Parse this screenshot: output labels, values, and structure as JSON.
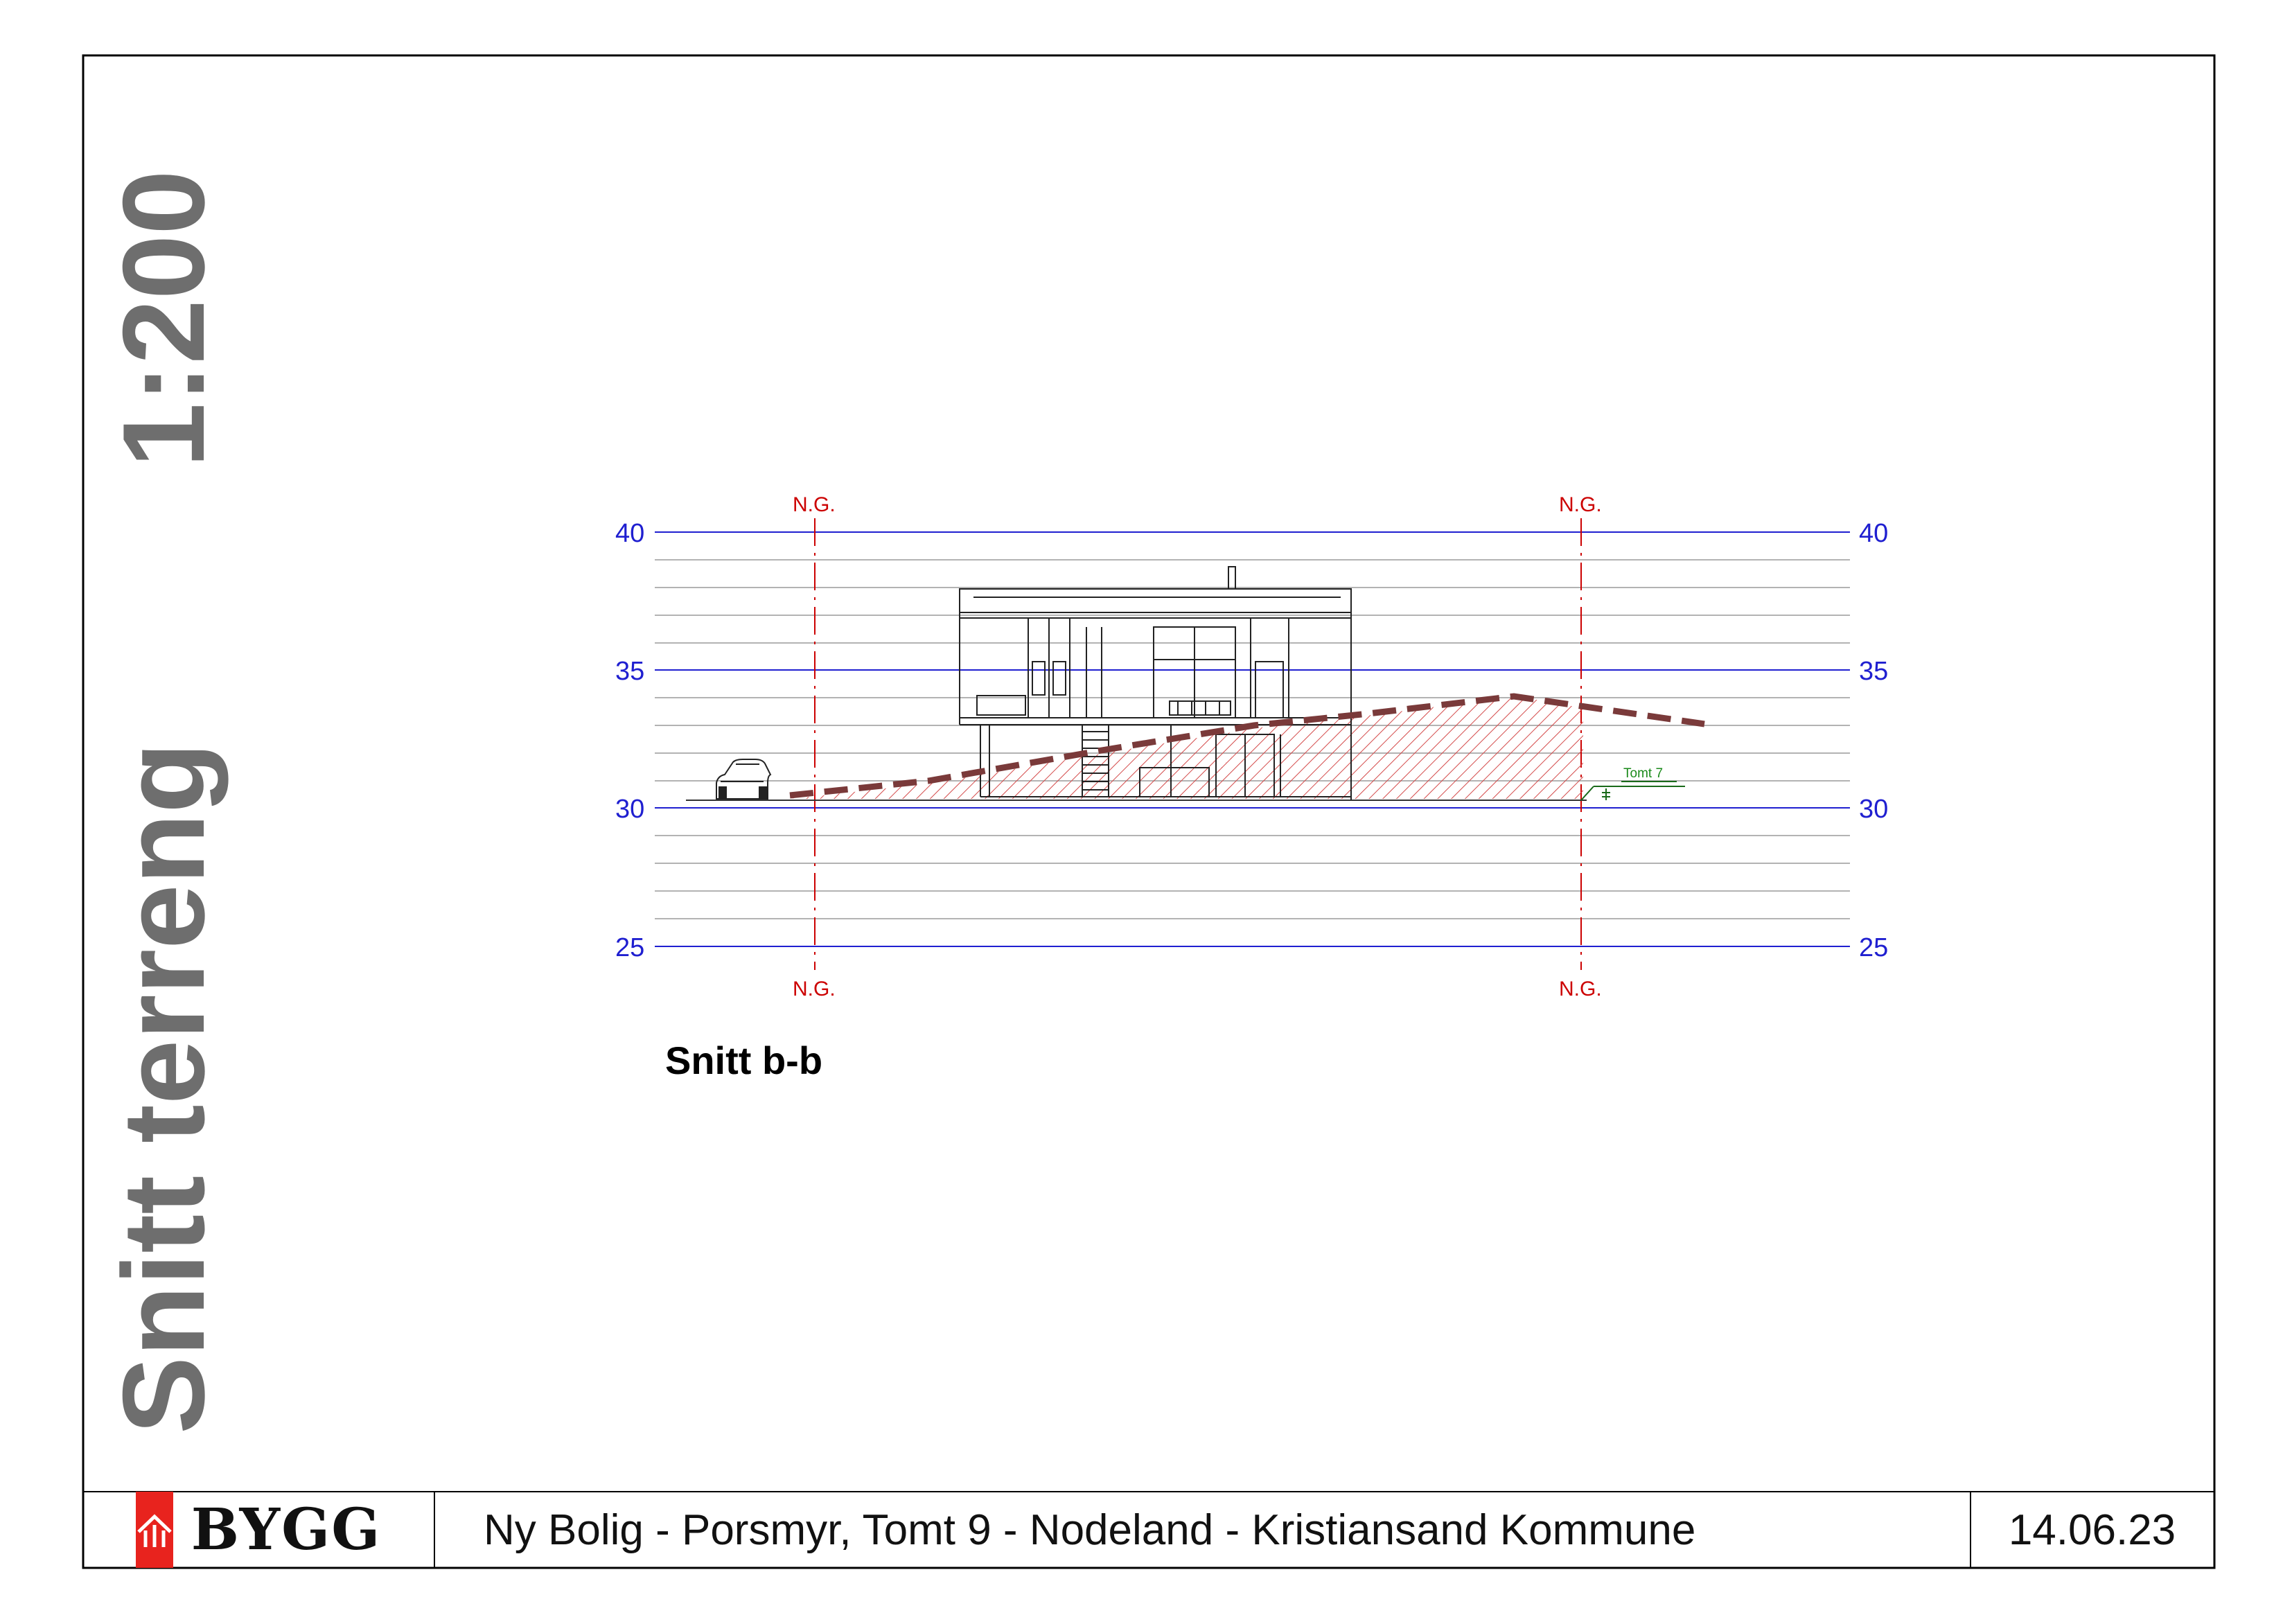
{
  "drawing": {
    "scale": "1:200",
    "sheet_title": "Snitt terreng",
    "section_label": "Snitt b-b",
    "elevation_levels": [
      "40",
      "35",
      "30",
      "25"
    ],
    "grid_marker": "N.G.",
    "neighbour_plot_label": "Tomt 7"
  },
  "footer": {
    "logo_text": "BYGG",
    "project": "Ny Bolig - Porsmyr, Tomt 9 - Nodeland - Kristiansand Kommune",
    "date": "14.06.23"
  },
  "colors": {
    "elevation_lines": "#1f1fd0",
    "grid_marker": "#cc0000",
    "terrain_line": "#7a3a3a",
    "terrain_fill": "#d44a4a",
    "neighbour_label": "#1a8a1a",
    "logo_accent": "#e8231e"
  }
}
